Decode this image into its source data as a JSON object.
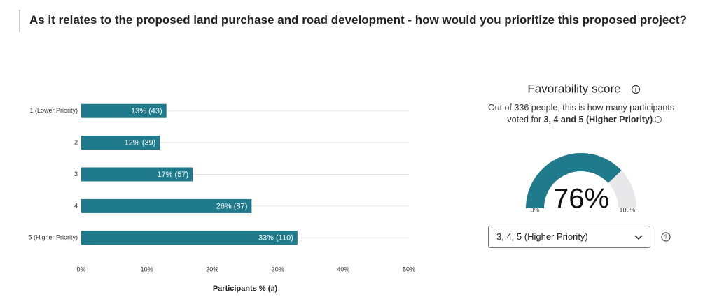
{
  "title": "As it relates to the proposed land purchase and road development - how would you prioritize this proposed project?",
  "chart_data": [
    {
      "type": "bar",
      "orientation": "horizontal",
      "categories": [
        "1 (Lower Priority)",
        "2",
        "3",
        "4",
        "5 (Higher Priority)"
      ],
      "values": [
        13,
        12,
        17,
        26,
        33
      ],
      "value_labels": [
        "13% (43)",
        "12% (39)",
        "17% (57)",
        "26% (87)",
        "33% (110)"
      ],
      "color": "#1f7a8c",
      "xlim": [
        0,
        50
      ],
      "xticks": [
        {
          "value": 0,
          "label": "0%"
        },
        {
          "value": 10,
          "label": "10%"
        },
        {
          "value": 20,
          "label": "20%"
        },
        {
          "value": 30,
          "label": "30%"
        },
        {
          "value": 40,
          "label": "40%"
        },
        {
          "value": 50,
          "label": "50%"
        }
      ],
      "xlabel": "Participants % (#)",
      "grid": true
    },
    {
      "type": "gauge",
      "title": "Favorability score",
      "value": 76,
      "value_label": "76%",
      "color": "#1f7a8c",
      "range": [
        {
          "value": 0,
          "label": "0%"
        },
        {
          "value": 100,
          "label": "100%"
        }
      ]
    }
  ],
  "favorability": {
    "description_start": "Out of 336 people, this is how many participants voted for ",
    "description_bold": "3, 4 and 5 (Higher Priority)",
    "description_end": ".",
    "dropdown": "3, 4, 5 (Higher Priority)"
  }
}
